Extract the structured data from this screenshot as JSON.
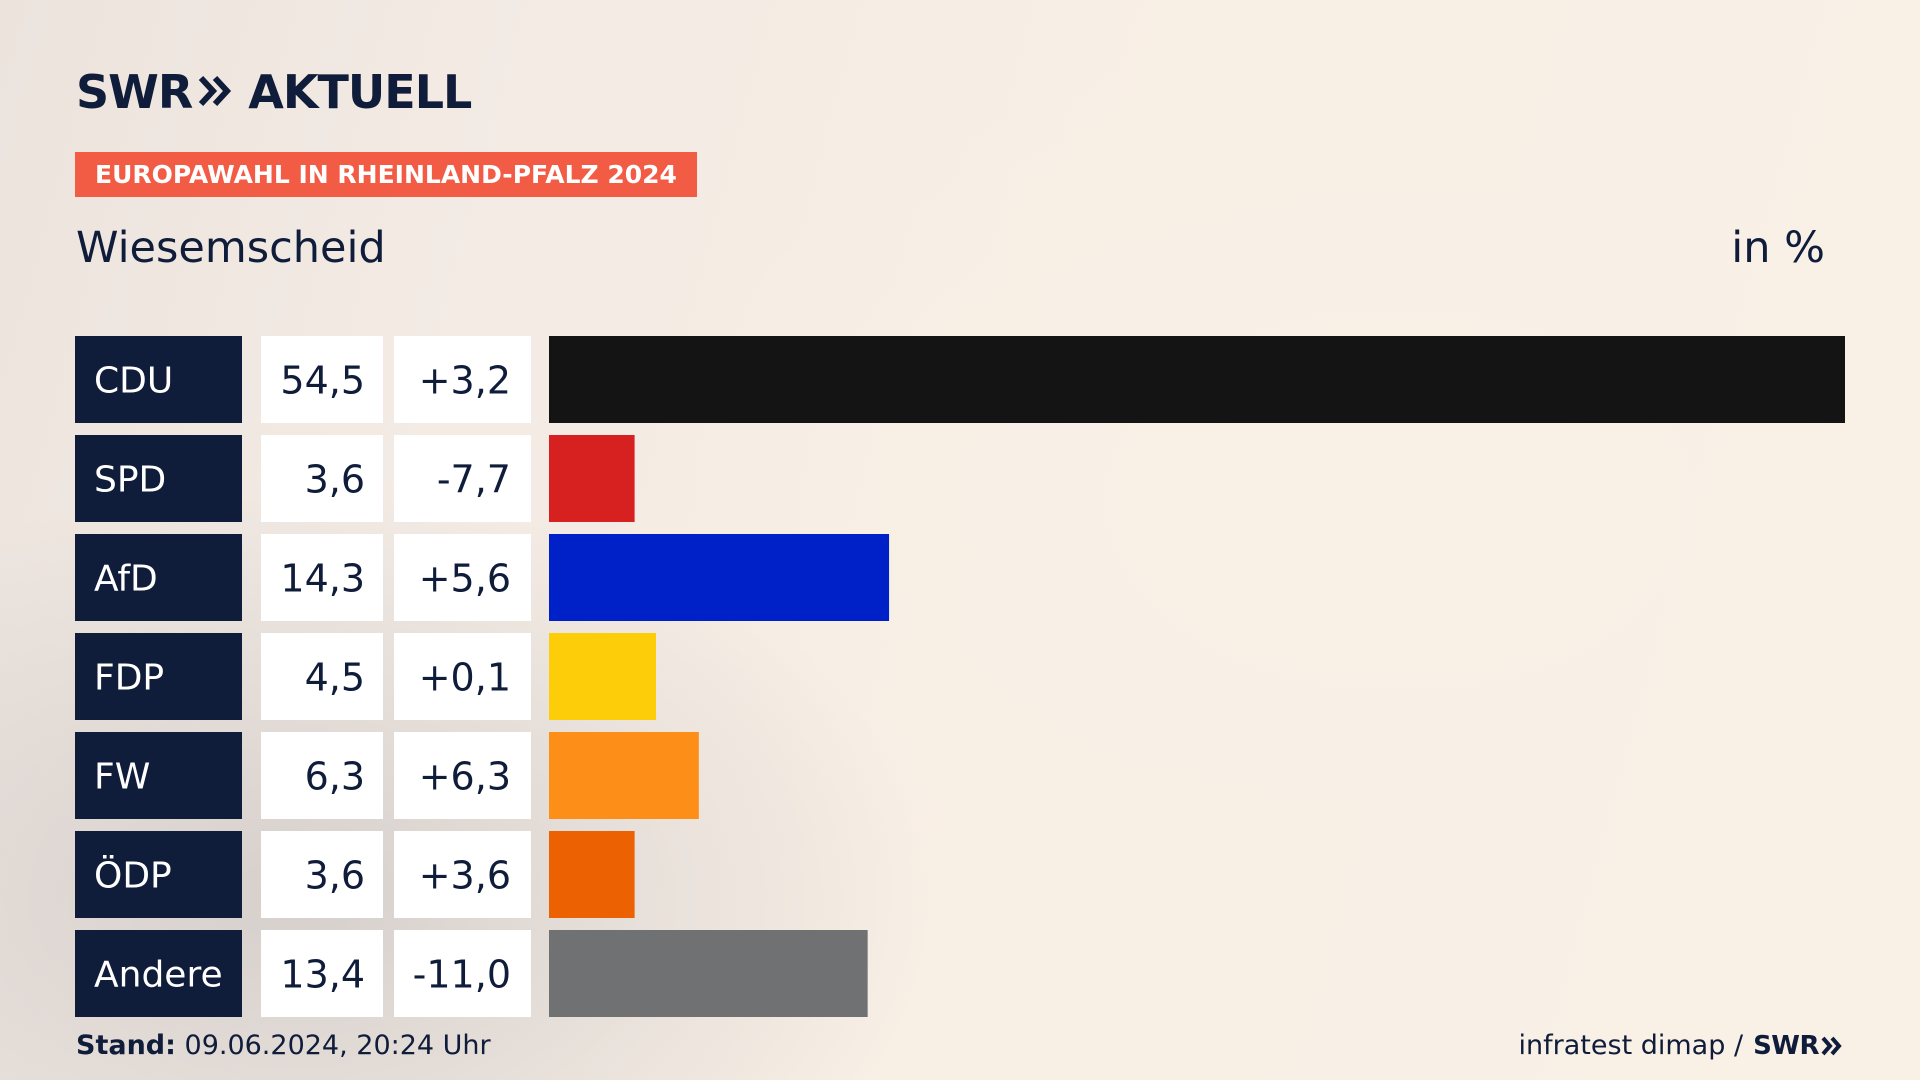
{
  "header": {
    "brand": "SWR",
    "brand_product": "AKTUELL",
    "badge": "EUROPAWAHL IN RHEINLAND-PFALZ 2024",
    "region": "Wiesemscheid",
    "unit": "in %"
  },
  "colors": {
    "navy": "#0f1c3a",
    "badge": "#f25c45"
  },
  "chart_data": {
    "type": "bar",
    "orientation": "horizontal",
    "title": "Wiesemscheid",
    "unit": "in %",
    "categories": [
      "CDU",
      "SPD",
      "AfD",
      "FDP",
      "FW",
      "ÖDP",
      "Andere"
    ],
    "values": [
      54.5,
      3.6,
      14.3,
      4.5,
      6.3,
      3.6,
      13.4
    ],
    "value_labels": [
      "54,5",
      "3,6",
      "14,3",
      "4,5",
      "6,3",
      "3,6",
      "13,4"
    ],
    "change_labels": [
      "+3,2",
      "-7,7",
      "+5,6",
      "+0,1",
      "+6,3",
      "+3,6",
      "-11,0"
    ],
    "changes": [
      3.2,
      -7.7,
      5.6,
      0.1,
      6.3,
      3.6,
      -11.0
    ],
    "bar_colors": [
      "#141414",
      "#d72020",
      "#0021c8",
      "#fecd0a",
      "#fd8e18",
      "#ec6202",
      "#707173"
    ],
    "xlim": [
      0,
      54.5
    ],
    "grid": false,
    "legend": "none"
  },
  "footer": {
    "stand_label": "Stand:",
    "stand_value": "09.06.2024, 20:24 Uhr",
    "source": "infratest dimap /",
    "source_brand": "SWR"
  }
}
